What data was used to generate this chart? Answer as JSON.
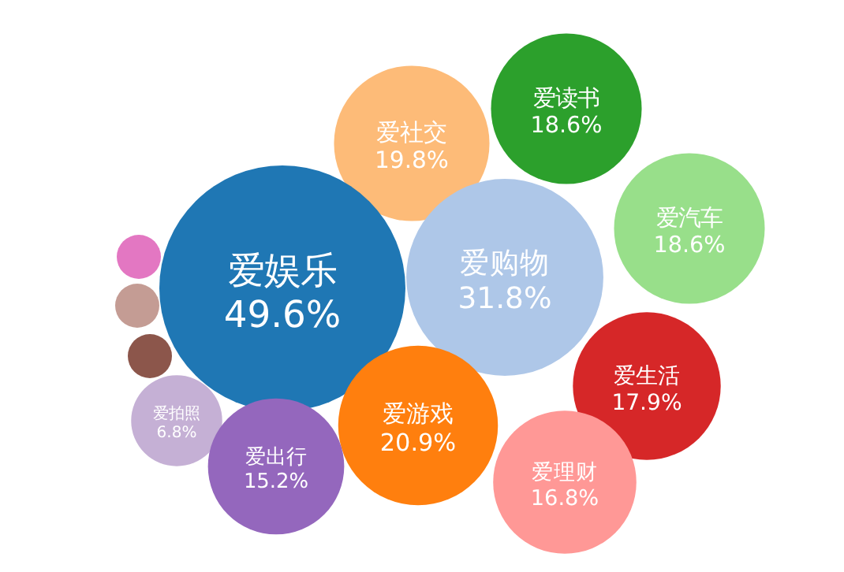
{
  "chart_data": {
    "type": "other",
    "categories": [
      "爱社交",
      "爱读书",
      "爱娱乐",
      "爱购物",
      "爱汽车",
      null,
      null,
      null,
      "爱生活",
      "爱拍照",
      "爱游戏",
      "爱出行",
      "爱理财"
    ],
    "values": [
      19.8,
      18.6,
      49.6,
      31.8,
      18.6,
      null,
      null,
      null,
      17.9,
      6.8,
      20.9,
      15.2,
      16.8
    ],
    "value_labels": [
      "19.8%",
      "18.6%",
      "49.6%",
      "31.8%",
      "18.6%",
      null,
      null,
      null,
      "17.9%",
      "6.8%",
      "20.9%",
      "15.2%",
      "16.8%"
    ],
    "colors": [
      "#fdbb78",
      "#2ca02c",
      "#1f77b4",
      "#aec7e8",
      "#98df8a",
      "#e377c2",
      "#c49c94",
      "#8c564b",
      "#d62728",
      "#c5b0d5",
      "#ff7f0e",
      "#9467bd",
      "#ff9896"
    ]
  }
}
